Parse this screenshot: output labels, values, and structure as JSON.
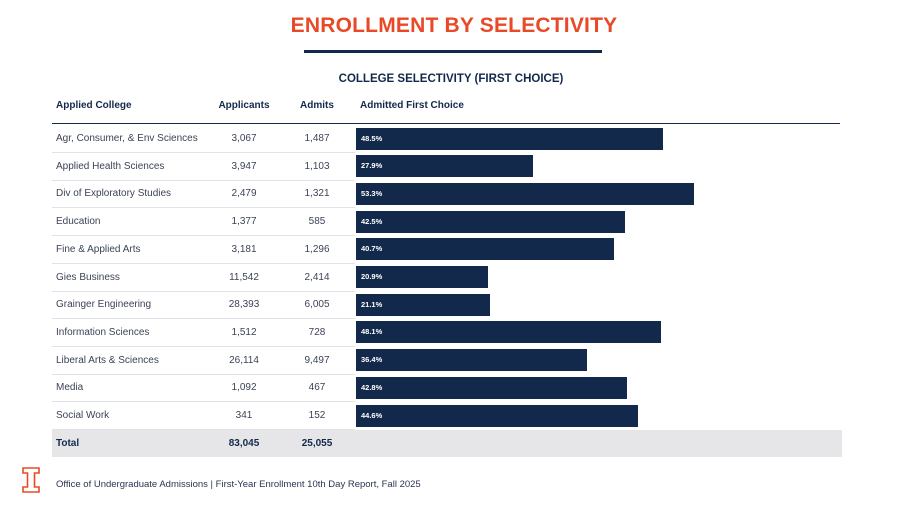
{
  "page": {
    "title": "ENROLLMENT BY SELECTIVITY",
    "footer": "Office of Undergraduate Admissions | First-Year Enrollment 10th Day Report, Fall 2025",
    "accent_color": "#e84a27",
    "navy_color": "#13294b",
    "logo_icon": "illinois-block-i-icon"
  },
  "chart_data": {
    "type": "table",
    "title": "COLLEGE SELECTIVITY (FIRST CHOICE)",
    "columns": [
      "Applied College",
      "Applicants",
      "Admits",
      "Admitted First Choice"
    ],
    "bar_max_percent": 60,
    "rows": [
      {
        "college": "Agr, Consumer, & Env Sciences",
        "applicants": "3,067",
        "admits": "1,487",
        "percent": 48.5,
        "percent_label": "48.5%"
      },
      {
        "college": "Applied Health Sciences",
        "applicants": "3,947",
        "admits": "1,103",
        "percent": 27.9,
        "percent_label": "27.9%"
      },
      {
        "college": "Div of Exploratory Studies",
        "applicants": "2,479",
        "admits": "1,321",
        "percent": 53.3,
        "percent_label": "53.3%"
      },
      {
        "college": "Education",
        "applicants": "1,377",
        "admits": "585",
        "percent": 42.5,
        "percent_label": "42.5%"
      },
      {
        "college": "Fine & Applied Arts",
        "applicants": "3,181",
        "admits": "1,296",
        "percent": 40.7,
        "percent_label": "40.7%"
      },
      {
        "college": "Gies Business",
        "applicants": "11,542",
        "admits": "2,414",
        "percent": 20.9,
        "percent_label": "20.9%"
      },
      {
        "college": "Grainger Engineering",
        "applicants": "28,393",
        "admits": "6,005",
        "percent": 21.1,
        "percent_label": "21.1%"
      },
      {
        "college": "Information Sciences",
        "applicants": "1,512",
        "admits": "728",
        "percent": 48.1,
        "percent_label": "48.1%"
      },
      {
        "college": "Liberal Arts & Sciences",
        "applicants": "26,114",
        "admits": "9,497",
        "percent": 36.4,
        "percent_label": "36.4%"
      },
      {
        "college": "Media",
        "applicants": "1,092",
        "admits": "467",
        "percent": 42.8,
        "percent_label": "42.8%"
      },
      {
        "college": "Social Work",
        "applicants": "341",
        "admits": "152",
        "percent": 44.6,
        "percent_label": "44.6%"
      }
    ],
    "total": {
      "label": "Total",
      "applicants": "83,045",
      "admits": "25,055"
    }
  }
}
